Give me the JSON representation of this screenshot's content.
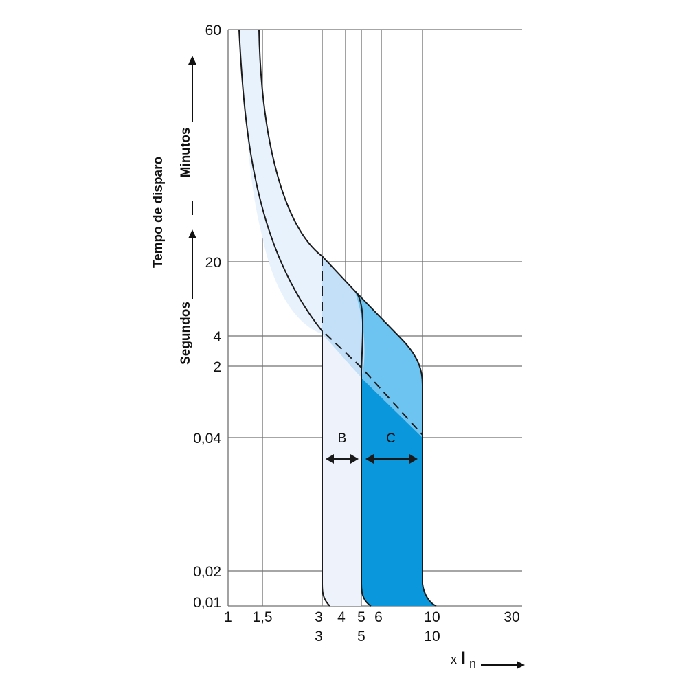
{
  "chart_data": {
    "type": "area",
    "title": "",
    "ylabel": "Tempo de disparo",
    "ylabel_units": {
      "seconds": "Segundos",
      "minutes": "Minutos"
    },
    "xlabel": {
      "prefix": "x",
      "main": "I",
      "sub": "n"
    },
    "x_ticks": [
      "1",
      "1,5",
      "3",
      "4",
      "5",
      "6",
      "10",
      "30"
    ],
    "x_ticks_row2": [
      "3",
      "5",
      "10"
    ],
    "y_ticks": [
      "60",
      "20",
      "4",
      "2",
      "0,04",
      "0,02",
      "0,01"
    ],
    "grid": true,
    "regions": [
      {
        "label": "B",
        "x_range": [
          3,
          5
        ]
      },
      {
        "label": "C",
        "x_range": [
          5,
          10
        ]
      }
    ],
    "colors": {
      "grid": "#707070",
      "line": "#1a1a1a",
      "thermal_band": "#e8f2fd",
      "b_band": "#eef3fb",
      "b_upper": "#c4e0f8",
      "c_upper": "#6ec4f1",
      "c_lower": "#0b97dc"
    }
  }
}
